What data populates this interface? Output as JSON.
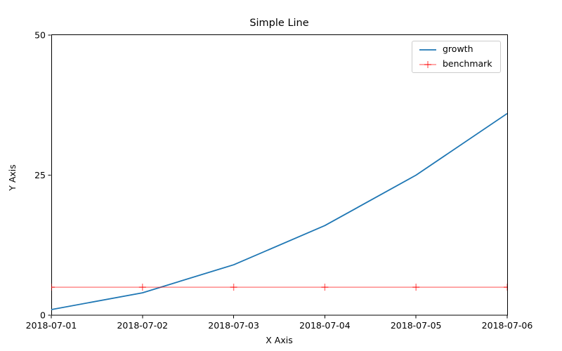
{
  "title": "Simple Line",
  "chart_data": {
    "type": "line",
    "title": "Simple Line",
    "xlabel": "X Axis",
    "ylabel": "Y Axis",
    "x": [
      "2018-07-01",
      "2018-07-02",
      "2018-07-03",
      "2018-07-04",
      "2018-07-05",
      "2018-07-06"
    ],
    "series": [
      {
        "name": "growth",
        "values": [
          1,
          4,
          9,
          16,
          25,
          36
        ],
        "color": "#1f77b4",
        "alpha": 1,
        "marker": "none",
        "line_width": 1.8
      },
      {
        "name": "benchmark",
        "values": [
          5,
          5,
          5,
          5,
          5,
          5
        ],
        "color": "#ff0000",
        "alpha": 0.55,
        "marker": "plus",
        "line_width": 1.3
      }
    ],
    "ylim": [
      0,
      50
    ],
    "yticks": [
      0,
      25,
      50
    ],
    "grid": false,
    "legend_position": "upper right",
    "axis_color": "#000000",
    "legend_border_color": "#cccccc"
  }
}
